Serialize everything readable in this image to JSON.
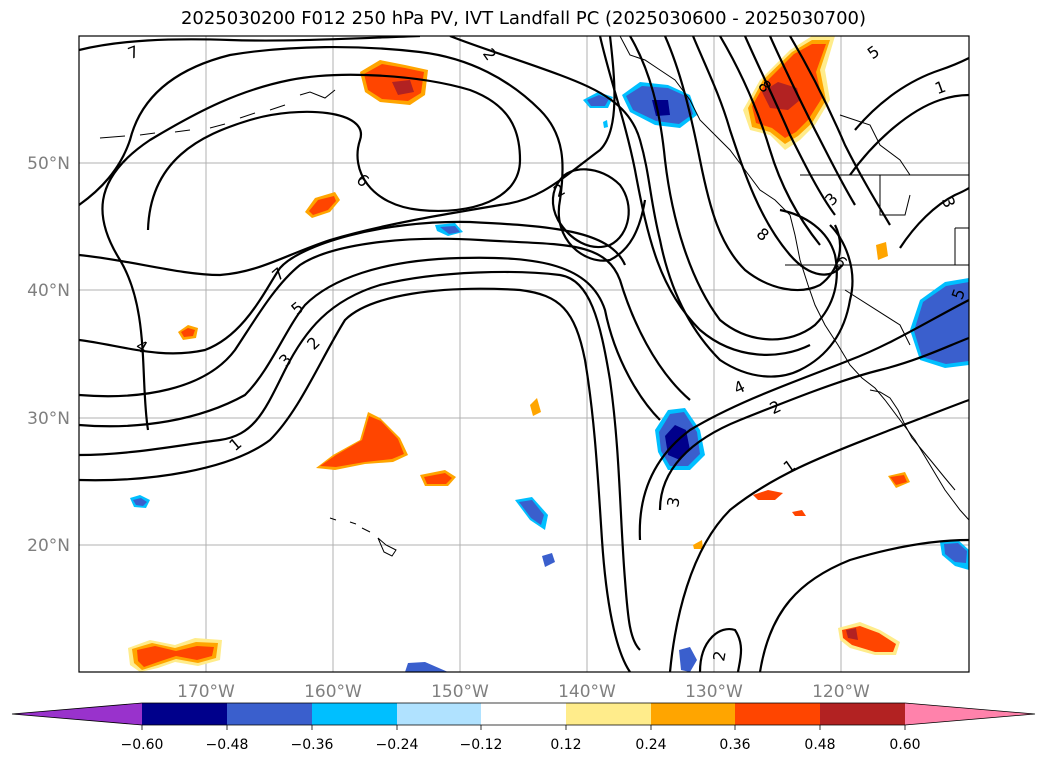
{
  "title": "2025030200 F012 250 hPa PV, IVT Landfall PC (2025030600 - 2025030700)",
  "lat_labels": [
    "50°N",
    "40°N",
    "30°N",
    "20°N"
  ],
  "lon_labels": [
    "170°W",
    "160°W",
    "150°W",
    "140°W",
    "130°W",
    "120°W"
  ],
  "contour_labels": [
    "7",
    "2",
    "5",
    "1",
    "6",
    "2",
    "7",
    "5",
    "3",
    "2",
    "4",
    "1",
    "8",
    "3",
    "8",
    "6",
    "5",
    "4",
    "2",
    "1",
    "3",
    "2",
    "3"
  ],
  "colorbar": {
    "ticks": [
      "−0.60",
      "−0.48",
      "−0.36",
      "−0.24",
      "−0.12",
      "0.12",
      "0.24",
      "0.36",
      "0.48",
      "0.60"
    ],
    "colors": [
      "#9932cc",
      "#00008b",
      "#3a5fcd",
      "#00bfff",
      "#b0e2ff",
      "#ffffff",
      "#ffec8b",
      "#ffa500",
      "#ff4500",
      "#b22222",
      "#ff82ab"
    ]
  }
}
